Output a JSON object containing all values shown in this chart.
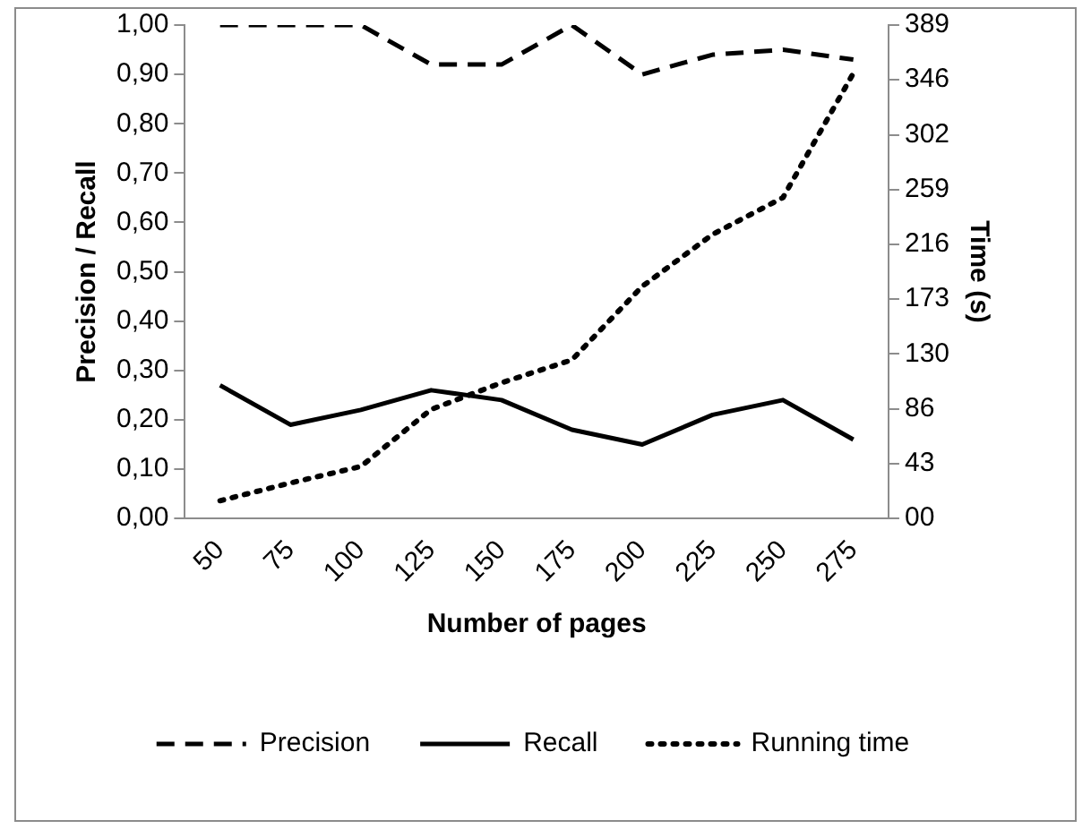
{
  "chart_data": {
    "type": "line",
    "xlabel": "Number of pages",
    "ylabel": "Precision / Recall",
    "y2label": "Time (s)",
    "categories": [
      "50",
      "75",
      "100",
      "125",
      "150",
      "175",
      "200",
      "225",
      "250",
      "275"
    ],
    "series": [
      {
        "name": "Precision",
        "color": "#000000",
        "line_style": "dashed",
        "values": [
          1.0,
          1.0,
          1.0,
          0.92,
          0.92,
          1.0,
          0.9,
          0.94,
          0.95,
          0.93
        ]
      },
      {
        "name": "Recall",
        "color": "#000000",
        "line_style": "solid",
        "values": [
          0.27,
          0.19,
          0.22,
          0.26,
          0.24,
          0.18,
          0.15,
          0.21,
          0.24,
          0.16
        ]
      },
      {
        "name": "Running time",
        "color": "#000000",
        "line_style": "dotted",
        "axis": "y2",
        "values": [
          14,
          28,
          41,
          86,
          107,
          125,
          183,
          224,
          253,
          351
        ]
      }
    ],
    "ylim": [
      0,
      1
    ],
    "yticks": [
      {
        "value": 0,
        "label": "0,00"
      },
      {
        "value": 0.1,
        "label": "0,10"
      },
      {
        "value": 0.2,
        "label": "0,20"
      },
      {
        "value": 0.3,
        "label": "0,30"
      },
      {
        "value": 0.4,
        "label": "0,40"
      },
      {
        "value": 0.5,
        "label": "0,50"
      },
      {
        "value": 0.6,
        "label": "0,60"
      },
      {
        "value": 0.7,
        "label": "0,70"
      },
      {
        "value": 0.8,
        "label": "0,80"
      },
      {
        "value": 0.9,
        "label": "0,90"
      },
      {
        "value": 1,
        "label": "1,00"
      }
    ],
    "y2lim": [
      0,
      389
    ],
    "y2ticks": [
      {
        "value": 0,
        "label": "00"
      },
      {
        "value": 43.2,
        "label": "43"
      },
      {
        "value": 86.4,
        "label": "86"
      },
      {
        "value": 129.7,
        "label": "130"
      },
      {
        "value": 172.9,
        "label": "173"
      },
      {
        "value": 216.1,
        "label": "216"
      },
      {
        "value": 259.3,
        "label": "259"
      },
      {
        "value": 302.4,
        "label": "302"
      },
      {
        "value": 345.8,
        "label": "346"
      },
      {
        "value": 389,
        "label": "389"
      }
    ],
    "grid": false,
    "legend": "bottom",
    "marker": "none"
  }
}
